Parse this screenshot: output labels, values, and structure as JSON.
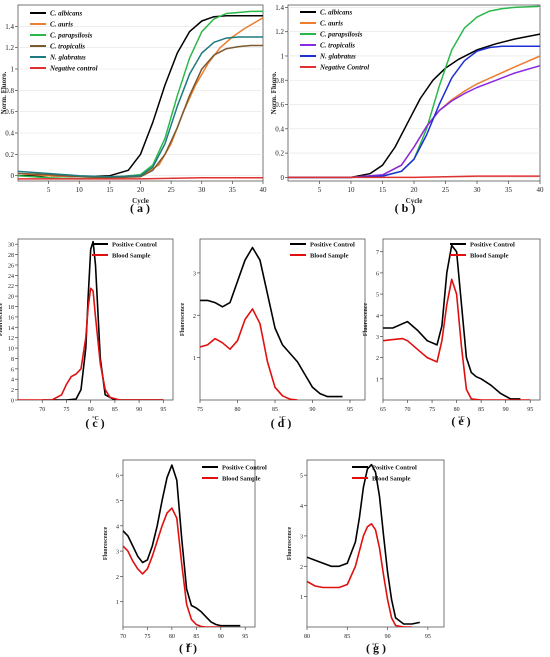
{
  "panels": [
    {
      "id": "a",
      "caption": "( a )",
      "type": "line",
      "xlabel": "Cycle",
      "ylabel": "Norm. Fluoro.",
      "xlim": [
        0,
        40
      ],
      "ylim": [
        -0.05,
        1.6
      ],
      "xticks": [
        5,
        10,
        15,
        20,
        25,
        30,
        35,
        40
      ],
      "xtick_labels": [
        "5",
        "10",
        "15",
        "20",
        "25",
        "30",
        "35",
        "40"
      ],
      "yticks": [
        0,
        0.2,
        0.4,
        0.6,
        0.8,
        1,
        1.2,
        1.4
      ],
      "ytick_labels": [
        "0",
        "0.2",
        "0.4",
        "0.6",
        "0.8",
        "1",
        "1.2",
        "1.4"
      ],
      "legend_position": "top-left",
      "series": [
        {
          "name": "C. albicans",
          "color": "#000000",
          "x": [
            0,
            5,
            10,
            15,
            18,
            20,
            22,
            24,
            26,
            28,
            30,
            32,
            34,
            36,
            38,
            40
          ],
          "y": [
            0.0,
            0.0,
            -0.01,
            0.0,
            0.05,
            0.2,
            0.5,
            0.85,
            1.15,
            1.35,
            1.45,
            1.49,
            1.5,
            1.5,
            1.5,
            1.5
          ]
        },
        {
          "name": "C. auris",
          "color": "#ed7d31",
          "x": [
            0,
            5,
            10,
            15,
            20,
            23,
            25,
            27,
            29,
            31,
            33,
            35,
            37,
            40
          ],
          "y": [
            0.02,
            0.0,
            -0.01,
            -0.01,
            0.0,
            0.1,
            0.3,
            0.6,
            0.85,
            1.05,
            1.2,
            1.3,
            1.38,
            1.48
          ]
        },
        {
          "name": "C. parapsilosis",
          "color": "#2bb84a",
          "x": [
            0,
            5,
            10,
            15,
            20,
            22,
            24,
            26,
            28,
            30,
            32,
            34,
            36,
            38,
            40
          ],
          "y": [
            0.0,
            -0.02,
            -0.03,
            -0.02,
            0.01,
            0.1,
            0.35,
            0.75,
            1.1,
            1.35,
            1.47,
            1.52,
            1.53,
            1.54,
            1.54
          ]
        },
        {
          "name": "C. tropicalis",
          "color": "#7a5a2e",
          "x": [
            0,
            5,
            10,
            15,
            20,
            22,
            24,
            26,
            28,
            30,
            32,
            34,
            36,
            38,
            40
          ],
          "y": [
            0.02,
            0.01,
            -0.01,
            -0.02,
            -0.01,
            0.05,
            0.2,
            0.45,
            0.75,
            1.0,
            1.13,
            1.19,
            1.21,
            1.22,
            1.22
          ]
        },
        {
          "name": "N. glabratus",
          "color": "#1f7a80",
          "x": [
            0,
            5,
            10,
            15,
            20,
            22,
            24,
            26,
            28,
            30,
            32,
            34,
            36,
            38,
            40
          ],
          "y": [
            0.04,
            0.02,
            0.0,
            -0.01,
            0.0,
            0.08,
            0.3,
            0.65,
            0.95,
            1.15,
            1.25,
            1.29,
            1.3,
            1.3,
            1.3
          ]
        },
        {
          "name": "Negative control",
          "color": "#e03030",
          "x": [
            0,
            10,
            20,
            30,
            40
          ],
          "y": [
            -0.03,
            -0.03,
            -0.03,
            -0.02,
            -0.02
          ]
        }
      ]
    },
    {
      "id": "b",
      "caption": "( b )",
      "type": "line",
      "xlabel": "Cycle",
      "ylabel": "Norm. Fluoro.",
      "xlim": [
        0,
        40
      ],
      "ylim": [
        -0.03,
        1.42
      ],
      "xticks": [
        5,
        10,
        15,
        20,
        25,
        30,
        35,
        40
      ],
      "xtick_labels": [
        "5",
        "10",
        "15",
        "20",
        "25",
        "30",
        "35",
        "40"
      ],
      "yticks": [
        0,
        0.2,
        0.4,
        0.6,
        0.8,
        1,
        1.2,
        1.4
      ],
      "ytick_labels": [
        "0",
        "0.2",
        "0.4",
        "0.6",
        "0.8",
        "1",
        "1.2",
        "1.4"
      ],
      "legend_position": "top-left",
      "series": [
        {
          "name": "C. albicans",
          "color": "#000000",
          "x": [
            0,
            5,
            10,
            13,
            15,
            17,
            19,
            21,
            23,
            25,
            27,
            30,
            33,
            36,
            40
          ],
          "y": [
            0.0,
            0.0,
            0.0,
            0.03,
            0.1,
            0.25,
            0.45,
            0.65,
            0.8,
            0.9,
            0.97,
            1.05,
            1.1,
            1.14,
            1.18
          ]
        },
        {
          "name": "C. auris",
          "color": "#ed7d31",
          "x": [
            0,
            10,
            15,
            18,
            20,
            22,
            24,
            26,
            28,
            30,
            33,
            36,
            40
          ],
          "y": [
            0.0,
            0.0,
            0.02,
            0.1,
            0.25,
            0.42,
            0.55,
            0.64,
            0.71,
            0.77,
            0.84,
            0.91,
            1.0
          ]
        },
        {
          "name": "C. parapsilosis",
          "color": "#2bb84a",
          "x": [
            0,
            10,
            15,
            18,
            20,
            22,
            24,
            26,
            28,
            30,
            32,
            34,
            36,
            40
          ],
          "y": [
            0.0,
            0.0,
            0.01,
            0.05,
            0.15,
            0.4,
            0.75,
            1.05,
            1.23,
            1.32,
            1.37,
            1.39,
            1.4,
            1.41
          ]
        },
        {
          "name": "C. tropicalis",
          "color": "#8a2be2",
          "x": [
            0,
            10,
            15,
            18,
            20,
            22,
            24,
            26,
            28,
            30,
            33,
            36,
            40
          ],
          "y": [
            0.0,
            0.0,
            0.02,
            0.1,
            0.25,
            0.42,
            0.55,
            0.63,
            0.69,
            0.74,
            0.8,
            0.86,
            0.92
          ]
        },
        {
          "name": "N. glabratus",
          "color": "#1f2fd6",
          "x": [
            0,
            10,
            15,
            18,
            20,
            22,
            24,
            26,
            28,
            30,
            32,
            34,
            36,
            40
          ],
          "y": [
            0.0,
            0.0,
            0.01,
            0.05,
            0.15,
            0.35,
            0.6,
            0.82,
            0.96,
            1.04,
            1.07,
            1.08,
            1.08,
            1.08
          ]
        },
        {
          "name": "Negative Control",
          "color": "#e03030",
          "x": [
            0,
            10,
            20,
            30,
            40
          ],
          "y": [
            0.0,
            0.0,
            0.0,
            0.01,
            0.01
          ]
        }
      ]
    },
    {
      "id": "c",
      "caption": "( c )",
      "type": "line",
      "xlabel": "°C",
      "ylabel": "Fluorescence",
      "xlim": [
        65,
        97
      ],
      "ylim": [
        0,
        31
      ],
      "xticks": [
        70,
        75,
        80,
        85,
        90,
        95
      ],
      "xtick_labels": [
        "70",
        "75",
        "80",
        "85",
        "90",
        "95"
      ],
      "yticks": [
        0,
        2,
        4,
        6,
        8,
        10,
        12,
        14,
        16,
        18,
        20,
        22,
        24,
        26,
        28,
        30
      ],
      "ytick_labels": [
        "0",
        "2",
        "4",
        "6",
        "8",
        "10",
        "12",
        "14",
        "16",
        "18",
        "20",
        "22",
        "24",
        "26",
        "28",
        "30"
      ],
      "legend_position": "top-right",
      "series": [
        {
          "name": "Positive Control",
          "color": "#000000",
          "x": [
            70,
            75,
            77,
            78,
            79,
            79.5,
            80,
            80.5,
            81,
            82,
            83,
            85,
            90,
            95
          ],
          "y": [
            0,
            0,
            0.2,
            2,
            10,
            20,
            29,
            30.5,
            26,
            8,
            1,
            0,
            0,
            0
          ]
        },
        {
          "name": "Blood Sample",
          "color": "#e01010",
          "x": [
            65,
            72,
            74,
            75,
            76,
            77,
            78,
            79,
            79.5,
            80,
            80.5,
            81,
            82,
            83,
            84,
            86,
            95
          ],
          "y": [
            0,
            0,
            1,
            3,
            4.5,
            5,
            6,
            12,
            18,
            21.5,
            21,
            16,
            7,
            2,
            0.5,
            0,
            0
          ]
        }
      ]
    },
    {
      "id": "d",
      "caption": "( d )",
      "type": "line",
      "xlabel": "°C",
      "ylabel": "Fluorescence",
      "xlim": [
        75,
        97
      ],
      "ylim": [
        0,
        3.8
      ],
      "xticks": [
        75,
        80,
        85,
        90,
        95
      ],
      "xtick_labels": [
        "75",
        "80",
        "85",
        "90",
        "95"
      ],
      "yticks": [
        1,
        2,
        3
      ],
      "ytick_labels": [
        "1",
        "2",
        "3"
      ],
      "legend_position": "top-right",
      "series": [
        {
          "name": "Positive Control",
          "color": "#000000",
          "x": [
            75,
            76,
            77,
            78,
            79,
            80,
            81,
            82,
            83,
            84,
            85,
            86,
            87,
            88,
            89,
            90,
            91,
            92,
            94
          ],
          "y": [
            2.35,
            2.35,
            2.3,
            2.2,
            2.3,
            2.8,
            3.3,
            3.6,
            3.3,
            2.5,
            1.7,
            1.3,
            1.1,
            0.9,
            0.6,
            0.3,
            0.15,
            0.08,
            0.08
          ]
        },
        {
          "name": "Blood Sample",
          "color": "#e01010",
          "x": [
            75,
            76,
            77,
            78,
            79,
            80,
            81,
            82,
            83,
            84,
            85,
            86,
            87,
            88
          ],
          "y": [
            1.25,
            1.3,
            1.45,
            1.35,
            1.2,
            1.4,
            1.9,
            2.15,
            1.8,
            0.9,
            0.3,
            0.1,
            0.02,
            0.0
          ]
        }
      ]
    },
    {
      "id": "e",
      "caption": "( e )",
      "type": "line",
      "xlabel": "°C",
      "ylabel": "Fluorescence",
      "xlim": [
        65,
        97
      ],
      "ylim": [
        0,
        7.6
      ],
      "xticks": [
        65,
        70,
        75,
        80,
        85,
        90,
        95
      ],
      "xtick_labels": [
        "65",
        "70",
        "75",
        "80",
        "85",
        "90",
        "95"
      ],
      "yticks": [
        1,
        2,
        3,
        4,
        5,
        6,
        7
      ],
      "ytick_labels": [
        "1",
        "2",
        "3",
        "4",
        "5",
        "6",
        "7"
      ],
      "legend_position": "top-right",
      "series": [
        {
          "name": "Positive Control",
          "color": "#000000",
          "x": [
            65,
            67,
            69,
            70,
            72,
            74,
            76,
            77,
            78,
            79,
            80,
            81,
            82,
            83,
            84,
            85,
            87,
            89,
            91,
            93
          ],
          "y": [
            3.4,
            3.4,
            3.6,
            3.7,
            3.3,
            2.8,
            2.6,
            3.5,
            6,
            7.3,
            7,
            4.5,
            2,
            1.3,
            1.1,
            1.0,
            0.7,
            0.3,
            0.05,
            0.05
          ]
        },
        {
          "name": "Blood Sample",
          "color": "#e01010",
          "x": [
            65,
            67,
            69,
            70,
            72,
            74,
            76,
            77,
            78,
            79,
            80,
            81,
            82,
            83,
            85,
            95
          ],
          "y": [
            2.8,
            2.85,
            2.9,
            2.8,
            2.4,
            2.0,
            1.8,
            2.8,
            4.5,
            5.7,
            5,
            2.5,
            0.5,
            0.05,
            0,
            0
          ]
        }
      ]
    },
    {
      "id": "f",
      "caption": "( f )",
      "type": "line",
      "xlabel": "°C",
      "ylabel": "Fluorescence",
      "xlim": [
        70,
        97
      ],
      "ylim": [
        0,
        6.6
      ],
      "xticks": [
        70,
        75,
        80,
        85,
        90,
        95
      ],
      "xtick_labels": [
        "70",
        "75",
        "80",
        "85",
        "90",
        "95"
      ],
      "yticks": [
        1,
        2,
        3,
        4,
        5,
        6
      ],
      "ytick_labels": [
        "1",
        "2",
        "3",
        "4",
        "5",
        "6"
      ],
      "legend_position": "top-right",
      "series": [
        {
          "name": "Positive Control",
          "color": "#000000",
          "x": [
            70,
            71,
            72,
            73,
            74,
            75,
            76,
            77,
            78,
            79,
            80,
            81,
            82,
            83,
            84,
            85,
            86,
            87,
            88,
            89,
            90,
            92,
            94
          ],
          "y": [
            3.8,
            3.6,
            3.2,
            2.8,
            2.55,
            2.65,
            3.2,
            4.0,
            5.0,
            5.9,
            6.4,
            5.8,
            3.5,
            1.5,
            0.85,
            0.75,
            0.6,
            0.4,
            0.2,
            0.1,
            0.05,
            0.05,
            0.05
          ]
        },
        {
          "name": "Blood Sample",
          "color": "#e01010",
          "x": [
            70,
            71,
            72,
            73,
            74,
            75,
            76,
            77,
            78,
            79,
            80,
            81,
            82,
            83,
            84,
            85,
            86,
            87,
            90
          ],
          "y": [
            3.2,
            3.0,
            2.6,
            2.3,
            2.1,
            2.3,
            2.8,
            3.4,
            4.0,
            4.5,
            4.7,
            4.3,
            2.5,
            0.9,
            0.3,
            0.1,
            0.02,
            0,
            0
          ]
        }
      ]
    },
    {
      "id": "g",
      "caption": "( g )",
      "type": "line",
      "xlabel": "°C",
      "ylabel": "Fluorescence",
      "xlim": [
        80,
        97
      ],
      "ylim": [
        0,
        5.5
      ],
      "xticks": [
        80,
        85,
        90,
        95
      ],
      "xtick_labels": [
        "80",
        "85",
        "90",
        "95"
      ],
      "yticks": [
        1,
        2,
        3,
        4,
        5
      ],
      "ytick_labels": [
        "1",
        "2",
        "3",
        "4",
        "5"
      ],
      "legend_position": "top-right",
      "series": [
        {
          "name": "Positive Control",
          "color": "#000000",
          "x": [
            80,
            81,
            82,
            83,
            84,
            85,
            86,
            86.5,
            87,
            87.5,
            88,
            88.5,
            89,
            89.5,
            90,
            90.5,
            91,
            92,
            93,
            94
          ],
          "y": [
            2.3,
            2.2,
            2.1,
            2.0,
            2.0,
            2.1,
            2.8,
            3.6,
            4.6,
            5.2,
            5.35,
            5.1,
            4.3,
            3.0,
            1.8,
            0.9,
            0.3,
            0.1,
            0.1,
            0.15
          ]
        },
        {
          "name": "Blood Sample",
          "color": "#e01010",
          "x": [
            80,
            81,
            82,
            83,
            84,
            85,
            86,
            86.5,
            87,
            87.5,
            88,
            88.5,
            89,
            89.5,
            90,
            90.5,
            91,
            92,
            93
          ],
          "y": [
            1.5,
            1.35,
            1.3,
            1.3,
            1.3,
            1.4,
            2.0,
            2.5,
            3.0,
            3.3,
            3.4,
            3.2,
            2.6,
            1.7,
            0.9,
            0.3,
            0.05,
            0,
            0
          ]
        }
      ]
    }
  ]
}
